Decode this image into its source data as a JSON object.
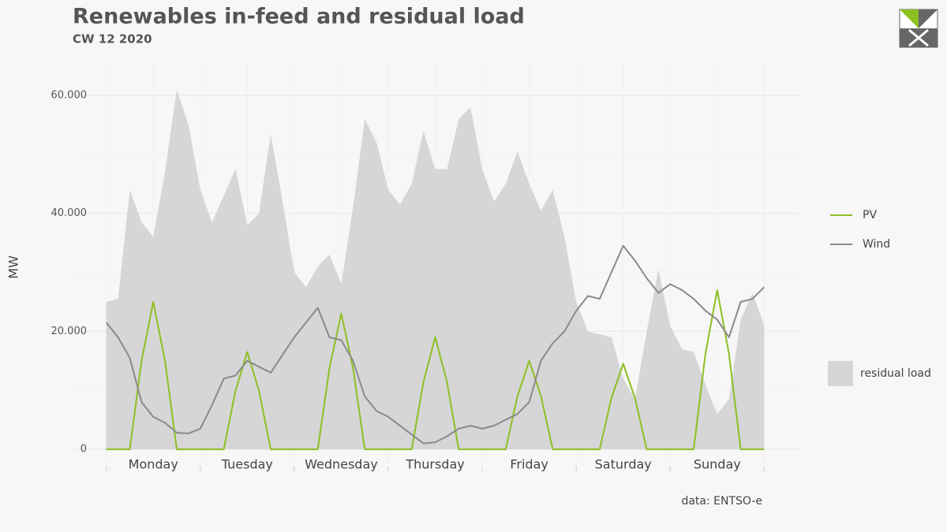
{
  "chart_data": {
    "type": "line",
    "title": "Renewables in-feed and residual load",
    "subtitle": "CW 12 2020",
    "y_label": "MW",
    "source": "data: ENTSO-e",
    "x": [
      0,
      3,
      6,
      9,
      12,
      15,
      18,
      21,
      24,
      27,
      30,
      33,
      36,
      39,
      42,
      45,
      48,
      51,
      54,
      57,
      60,
      63,
      66,
      69,
      72,
      75,
      78,
      81,
      84,
      87,
      90,
      93,
      96,
      99,
      102,
      105,
      108,
      111,
      114,
      117,
      120,
      123,
      126,
      129,
      132,
      135,
      138,
      141,
      144,
      147,
      150,
      153,
      156,
      159,
      162,
      165,
      168
    ],
    "xlim": [
      -8,
      177
    ],
    "xticks": [
      {
        "value": 12,
        "label": "Monday"
      },
      {
        "value": 36,
        "label": "Tuesday"
      },
      {
        "value": 60,
        "label": "Wednesday"
      },
      {
        "value": 84,
        "label": "Thursday"
      },
      {
        "value": 108,
        "label": "Friday"
      },
      {
        "value": 132,
        "label": "Saturday"
      },
      {
        "value": 156,
        "label": "Sunday"
      }
    ],
    "ylim": [
      -4000,
      65750
    ],
    "yticks": [
      0,
      {
        "value": 20000,
        "label": "20.000"
      },
      {
        "value": 40000,
        "label": "40.000"
      },
      {
        "value": 60000,
        "label": "60.000"
      }
    ],
    "grid": true,
    "series": [
      {
        "name": "PV",
        "color": "#8dbf23",
        "values": [
          0,
          0,
          0,
          15000,
          25000,
          15000,
          0,
          0,
          0,
          0,
          0,
          9900,
          16500,
          9900,
          0,
          0,
          0,
          0,
          0,
          13800,
          23000,
          13800,
          0,
          0,
          0,
          0,
          0,
          11400,
          19000,
          11400,
          0,
          0,
          0,
          0,
          0,
          9000,
          15000,
          9000,
          0,
          0,
          0,
          0,
          0,
          8700,
          14500,
          8700,
          0,
          0,
          0,
          0,
          0,
          16200,
          27000,
          16200,
          0,
          0,
          0
        ]
      },
      {
        "name": "Wind",
        "color": "#8a8a8a",
        "values": [
          21500,
          19000,
          15500,
          8000,
          5500,
          4500,
          2800,
          2700,
          3500,
          7500,
          12000,
          12500,
          15000,
          14000,
          13000,
          16000,
          19000,
          21500,
          24000,
          19000,
          18500,
          15000,
          9000,
          6500,
          5500,
          4000,
          2500,
          1000,
          1200,
          2200,
          3500,
          4000,
          3500,
          4000,
          5000,
          6000,
          8000,
          15000,
          18000,
          20000,
          23500,
          26000,
          25500,
          30000,
          34500,
          32000,
          29000,
          26500,
          28000,
          27000,
          25500,
          23500,
          22000,
          19000,
          25000,
          25500,
          27500
        ]
      },
      {
        "name": "residual load",
        "color": "#d6d6d6",
        "style": "area",
        "values": [
          25000,
          25500,
          44000,
          38500,
          36000,
          47000,
          61000,
          55000,
          44000,
          38500,
          43000,
          47500,
          38000,
          40000,
          53500,
          42000,
          30000,
          27500,
          31000,
          33000,
          28000,
          41000,
          56000,
          52000,
          44000,
          41500,
          45000,
          54000,
          47500,
          47500,
          56000,
          58000,
          47500,
          42000,
          45000,
          50500,
          45000,
          40500,
          44000,
          36000,
          25000,
          20000,
          19500,
          19000,
          12000,
          8500,
          20000,
          30500,
          21000,
          17000,
          16500,
          11000,
          6000,
          8500,
          22000,
          26500,
          21000
        ]
      }
    ]
  }
}
